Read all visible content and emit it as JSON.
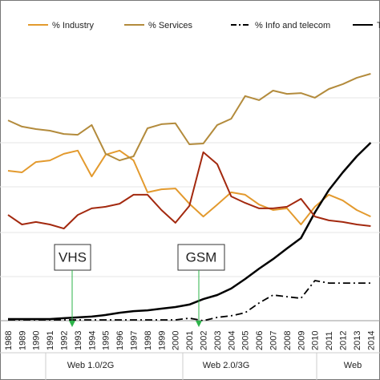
{
  "chart_data": {
    "type": "line",
    "categories": [
      "1988",
      "1989",
      "1990",
      "1991",
      "1992",
      "1993",
      "1994",
      "1995",
      "1996",
      "1997",
      "1998",
      "1999",
      "2000",
      "2001",
      "2002",
      "2003",
      "2004",
      "2005",
      "2006",
      "2007",
      "2008",
      "2009",
      "2010",
      "2011",
      "2012",
      "2013",
      "2014"
    ],
    "ylim": [
      0,
      100
    ],
    "series": [
      {
        "name": "% Industry",
        "color": "#e39a2e",
        "values": [
          55.0,
          54.4,
          58.2,
          58.8,
          61.2,
          62.4,
          52.9,
          60.9,
          62.4,
          58.8,
          47.1,
          48.2,
          48.5,
          42.9,
          38.2,
          42.6,
          47.1,
          46.2,
          42.6,
          40.6,
          41.2,
          35.3,
          41.8,
          46.2,
          44.1,
          40.6,
          38.2
        ]
      },
      {
        "name": "% Services",
        "color": "#b38b3c",
        "values": [
          73.5,
          71.2,
          70.3,
          69.7,
          68.5,
          68.2,
          71.8,
          61.2,
          58.8,
          60.3,
          70.6,
          72.1,
          72.4,
          64.7,
          65.0,
          71.8,
          74.1,
          82.4,
          80.9,
          84.4,
          83.2,
          83.5,
          81.8,
          85.0,
          86.8,
          89.1,
          90.6
        ]
      },
      {
        "name": "% Info and telecom",
        "color": "#000000",
        "dash": true,
        "values": [
          0.3,
          0.3,
          0.3,
          0.3,
          0.3,
          0.3,
          0.3,
          0.3,
          0.3,
          0.3,
          0.3,
          0.3,
          0.3,
          0.9,
          0,
          1.2,
          1.8,
          2.9,
          6.5,
          9.4,
          8.8,
          8.2,
          14.7,
          13.8,
          13.8,
          13.8,
          13.8
        ]
      },
      {
        "name": "T",
        "color": "#000000",
        "values": [
          0.6,
          0.6,
          0.6,
          0.6,
          0.9,
          1.2,
          1.5,
          2.1,
          2.9,
          3.5,
          3.8,
          4.4,
          5.0,
          5.9,
          7.9,
          9.4,
          11.8,
          15.3,
          19.1,
          22.6,
          26.5,
          30.3,
          39.7,
          47.9,
          54.4,
          60.3,
          65.3
        ]
      },
      {
        "color": "#a3290f",
        "values": [
          38.8,
          35.3,
          36.2,
          35.3,
          33.8,
          38.8,
          41.2,
          41.8,
          42.9,
          46.2,
          46.2,
          40.6,
          35.9,
          42.1,
          61.8,
          57.4,
          45.6,
          43.2,
          41.2,
          41.2,
          41.8,
          44.7,
          38.2,
          36.8,
          36.2,
          35.3,
          34.7
        ]
      }
    ],
    "annotations": [
      "VHS",
      "GSM"
    ],
    "periods": [
      "Web 1.0/2G",
      "Web 2.0/3G",
      "Web"
    ]
  }
}
